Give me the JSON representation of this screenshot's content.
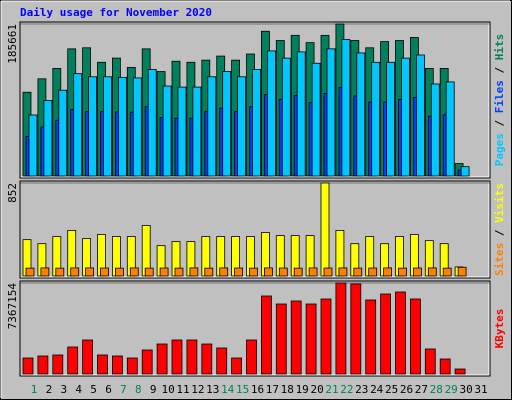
{
  "chart_data": {
    "type": "bar",
    "title": "Daily usage for November 2020",
    "categories": [
      "1",
      "2",
      "3",
      "4",
      "5",
      "6",
      "7",
      "8",
      "9",
      "10",
      "11",
      "12",
      "13",
      "14",
      "15",
      "16",
      "17",
      "18",
      "19",
      "20",
      "21",
      "22",
      "23",
      "24",
      "25",
      "26",
      "27",
      "28",
      "29",
      "30",
      "31"
    ],
    "weekend_categories": [
      0,
      6,
      7,
      13,
      14,
      20,
      21,
      27,
      28
    ],
    "weekend_color": "#00805c",
    "legend_separator": " / ",
    "panels": [
      {
        "ylim": [
          0,
          185661
        ],
        "yticks": [
          185661
        ],
        "series": [
          {
            "name": "Hits",
            "color": "#00805c",
            "values": [
              102300,
              118700,
              131400,
              155300,
              156600,
              138900,
              144000,
              132600,
              155300,
              127600,
              140200,
              138900,
              141500,
              146500,
              141500,
              149000,
              176800,
              165500,
              171800,
              162900,
              171800,
              185661,
              165500,
              156600,
              164200,
              165500,
              169200,
              131400,
              131400,
              15200,
              0
            ]
          },
          {
            "name": "Files",
            "color": "#0040ff",
            "values": [
              48400,
              59900,
              68100,
              81300,
              78800,
              78800,
              78300,
              77900,
              84600,
              71400,
              70600,
              70600,
              78800,
              82900,
              78800,
              84600,
              99300,
              93600,
              98500,
              89500,
              100900,
              108400,
              97700,
              90300,
              90300,
              93600,
              96100,
              73100,
              74700,
              7400,
              0
            ]
          },
          {
            "name": "Pages",
            "color": "#00c8ff",
            "values": [
              74500,
              92200,
              104800,
              125000,
              121200,
              121200,
              120500,
              119800,
              130100,
              109900,
              108600,
              108600,
              121200,
              127600,
              121200,
              130100,
              152800,
              144000,
              151600,
              137700,
              155300,
              166700,
              150300,
              138900,
              138900,
              144000,
              147800,
              112400,
              114900,
              11400,
              0
            ]
          }
        ]
      },
      {
        "ylim": [
          0,
          852
        ],
        "yticks": [
          852
        ],
        "series": [
          {
            "name": "Visits",
            "color": "#ffff00",
            "values": [
              333,
              296,
              361,
              417,
              343,
              380,
              361,
              361,
              463,
              278,
              315,
              315,
              361,
              361,
              361,
              361,
              398,
              370,
              370,
              370,
              852,
              417,
              296,
              361,
              296,
              361,
              380,
              324,
              296,
              83,
              0
            ]
          },
          {
            "name": "Sites",
            "color": "#ff8000",
            "values": [
              72,
              74,
              72,
              74,
              74,
              73,
              72,
              74,
              72,
              73,
              72,
              74,
              72,
              74,
              73,
              72,
              74,
              73,
              72,
              74,
              73,
              74,
              72,
              73,
              74,
              72,
              73,
              74,
              72,
              80,
              0
            ]
          }
        ]
      },
      {
        "ylim": [
          0,
          7367154
        ],
        "yticks": [
          7367154
        ],
        "series": [
          {
            "name": "KBytes",
            "color": "#ff0000",
            "values": [
              1295300,
              1457200,
              1538200,
              2185900,
              2752600,
              1538200,
              1457200,
              1295300,
              1943000,
              2428700,
              2752600,
              2752600,
              2428700,
              2104900,
              1295300,
              2752600,
              6314700,
              5667100,
              5909900,
              5667100,
              6071900,
              7367154,
              7286200,
              5990900,
              6476600,
              6638600,
              6071900,
              2024000,
              1214400,
              404800,
              0
            ]
          }
        ]
      }
    ]
  }
}
